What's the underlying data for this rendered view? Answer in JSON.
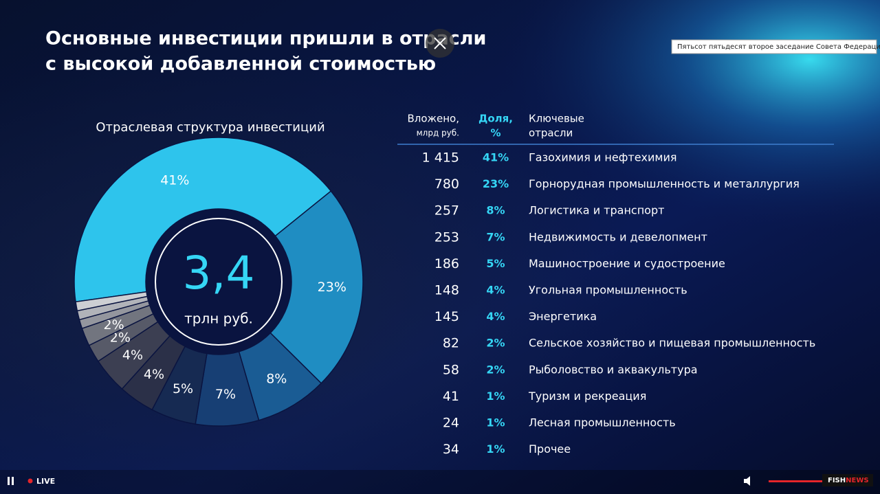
{
  "slide": {
    "title_lines": [
      "Основные инвестиции пришли в отрасли",
      "с высокой добавленной стоимостью"
    ]
  },
  "chart_data": {
    "type": "pie",
    "donut": true,
    "title": "Отраслевая структура инвестиций",
    "center_value": "3,4",
    "center_label": "трлн руб.",
    "categories": [
      "Газохимия и нефтехимия",
      "Горнорудная промышленность и металлургия",
      "Логистика и транспорт",
      "Недвижимость и девелопмент",
      "Машиностроение и судостроение",
      "Угольная промышленность",
      "Энергетика",
      "Сельское хозяйство и пищевая промышленность",
      "Рыболовство и аквакультура",
      "Туризм и рекреация",
      "Лесная промышленность",
      "Прочее"
    ],
    "values": [
      41,
      23,
      8,
      7,
      5,
      4,
      4,
      2,
      2,
      1,
      1,
      1
    ],
    "value_labels": [
      "41%",
      "23%",
      "8%",
      "7%",
      "5%",
      "4%",
      "4%",
      "2%",
      "2%",
      "1%",
      "1%",
      "1%"
    ],
    "colors": [
      "#2ec4ec",
      "#1f8dc2",
      "#1a5c94",
      "#173f74",
      "#162a52",
      "#2b3048",
      "#3c3f52",
      "#575a68",
      "#72757f",
      "#94969e",
      "#b1b3b9",
      "#cdcfd3"
    ]
  },
  "table": {
    "headers": [
      [
        "Вложено,",
        "млрд руб."
      ],
      [
        "Доля,",
        "%"
      ],
      [
        "Ключевые",
        "отрасли"
      ]
    ],
    "invested": [
      "1 415",
      "780",
      "257",
      "253",
      "186",
      "148",
      "145",
      "82",
      "58",
      "41",
      "24",
      "34"
    ]
  },
  "player": {
    "tooltip": "Пятьсот пятьдесят второе заседание Совета Федерации",
    "live": "LIVE",
    "logo_fish": "FISH",
    "logo_news": "NEWS"
  }
}
